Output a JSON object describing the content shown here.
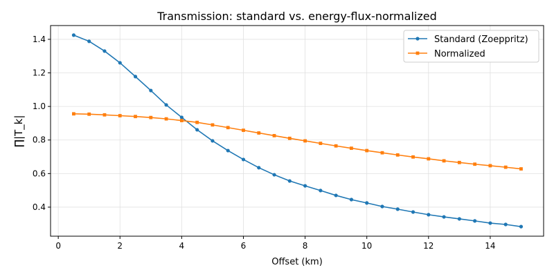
{
  "chart_data": {
    "type": "line",
    "title": "Transmission: standard vs. energy-flux-normalized",
    "xlabel": "Offset (km)",
    "ylabel": "∏|T_k|",
    "xlim": [
      -0.25,
      15.73
    ],
    "ylim": [
      0.227,
      1.482
    ],
    "xticks": [
      0,
      2,
      4,
      6,
      8,
      10,
      12,
      14
    ],
    "yticks": [
      0.4,
      0.6,
      0.8,
      1.0,
      1.2,
      1.4
    ],
    "grid": true,
    "legend": "top-right",
    "x": [
      0.5,
      1,
      1.5,
      2,
      2.5,
      3,
      3.5,
      4,
      4.5,
      5,
      5.5,
      6,
      6.5,
      7,
      7.5,
      8,
      8.5,
      9,
      9.5,
      10,
      10.5,
      11,
      11.5,
      12,
      12.5,
      13,
      13.5,
      14,
      14.5,
      15
    ],
    "series": [
      {
        "name": "Standard (Zoeppritz)",
        "color": "#1f77b4",
        "marker": "circle",
        "values": [
          1.425,
          1.388,
          1.33,
          1.26,
          1.178,
          1.095,
          1.009,
          0.935,
          0.861,
          0.795,
          0.737,
          0.684,
          0.635,
          0.593,
          0.556,
          0.527,
          0.499,
          0.47,
          0.445,
          0.425,
          0.404,
          0.388,
          0.371,
          0.355,
          0.342,
          0.33,
          0.318,
          0.305,
          0.297,
          0.284
        ]
      },
      {
        "name": "Normalized",
        "color": "#ff7f0e",
        "marker": "square",
        "values": [
          0.956,
          0.954,
          0.95,
          0.945,
          0.94,
          0.934,
          0.926,
          0.916,
          0.905,
          0.89,
          0.874,
          0.858,
          0.842,
          0.826,
          0.81,
          0.795,
          0.78,
          0.765,
          0.751,
          0.737,
          0.724,
          0.711,
          0.699,
          0.688,
          0.676,
          0.666,
          0.656,
          0.647,
          0.638,
          0.628
        ]
      }
    ]
  }
}
